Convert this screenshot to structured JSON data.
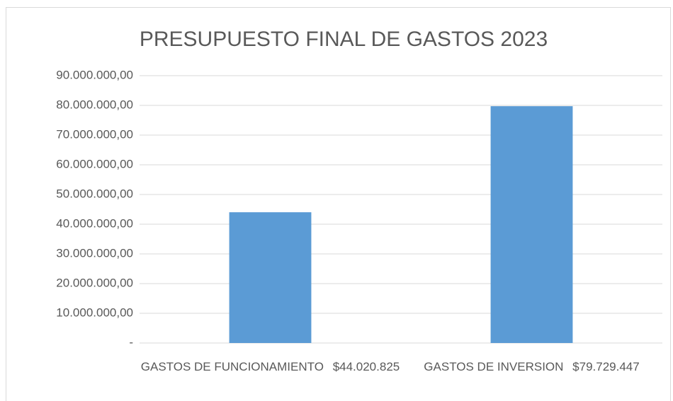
{
  "chart_data": {
    "type": "bar",
    "title": "PRESUPUESTO FINAL DE GASTOS 2023",
    "categories": [
      "GASTOS DE FUNCIONAMIENTO",
      "GASTOS DE INVERSION"
    ],
    "values": [
      44020825,
      79729447
    ],
    "value_labels": [
      "$44.020.825",
      "$79.729.447"
    ],
    "color": "#5b9bd5",
    "ylim": [
      0,
      90000000
    ],
    "yticks": [
      {
        "value": 0,
        "label": "-"
      },
      {
        "value": 10000000,
        "label": "10.000.000,00"
      },
      {
        "value": 20000000,
        "label": "20.000.000,00"
      },
      {
        "value": 30000000,
        "label": "30.000.000,00"
      },
      {
        "value": 40000000,
        "label": "40.000.000,00"
      },
      {
        "value": 50000000,
        "label": "50.000.000,00"
      },
      {
        "value": 60000000,
        "label": "60.000.000,00"
      },
      {
        "value": 70000000,
        "label": "70.000.000,00"
      },
      {
        "value": 80000000,
        "label": "80.000.000,00"
      },
      {
        "value": 90000000,
        "label": "90.000.000,00"
      }
    ],
    "grid": true
  }
}
